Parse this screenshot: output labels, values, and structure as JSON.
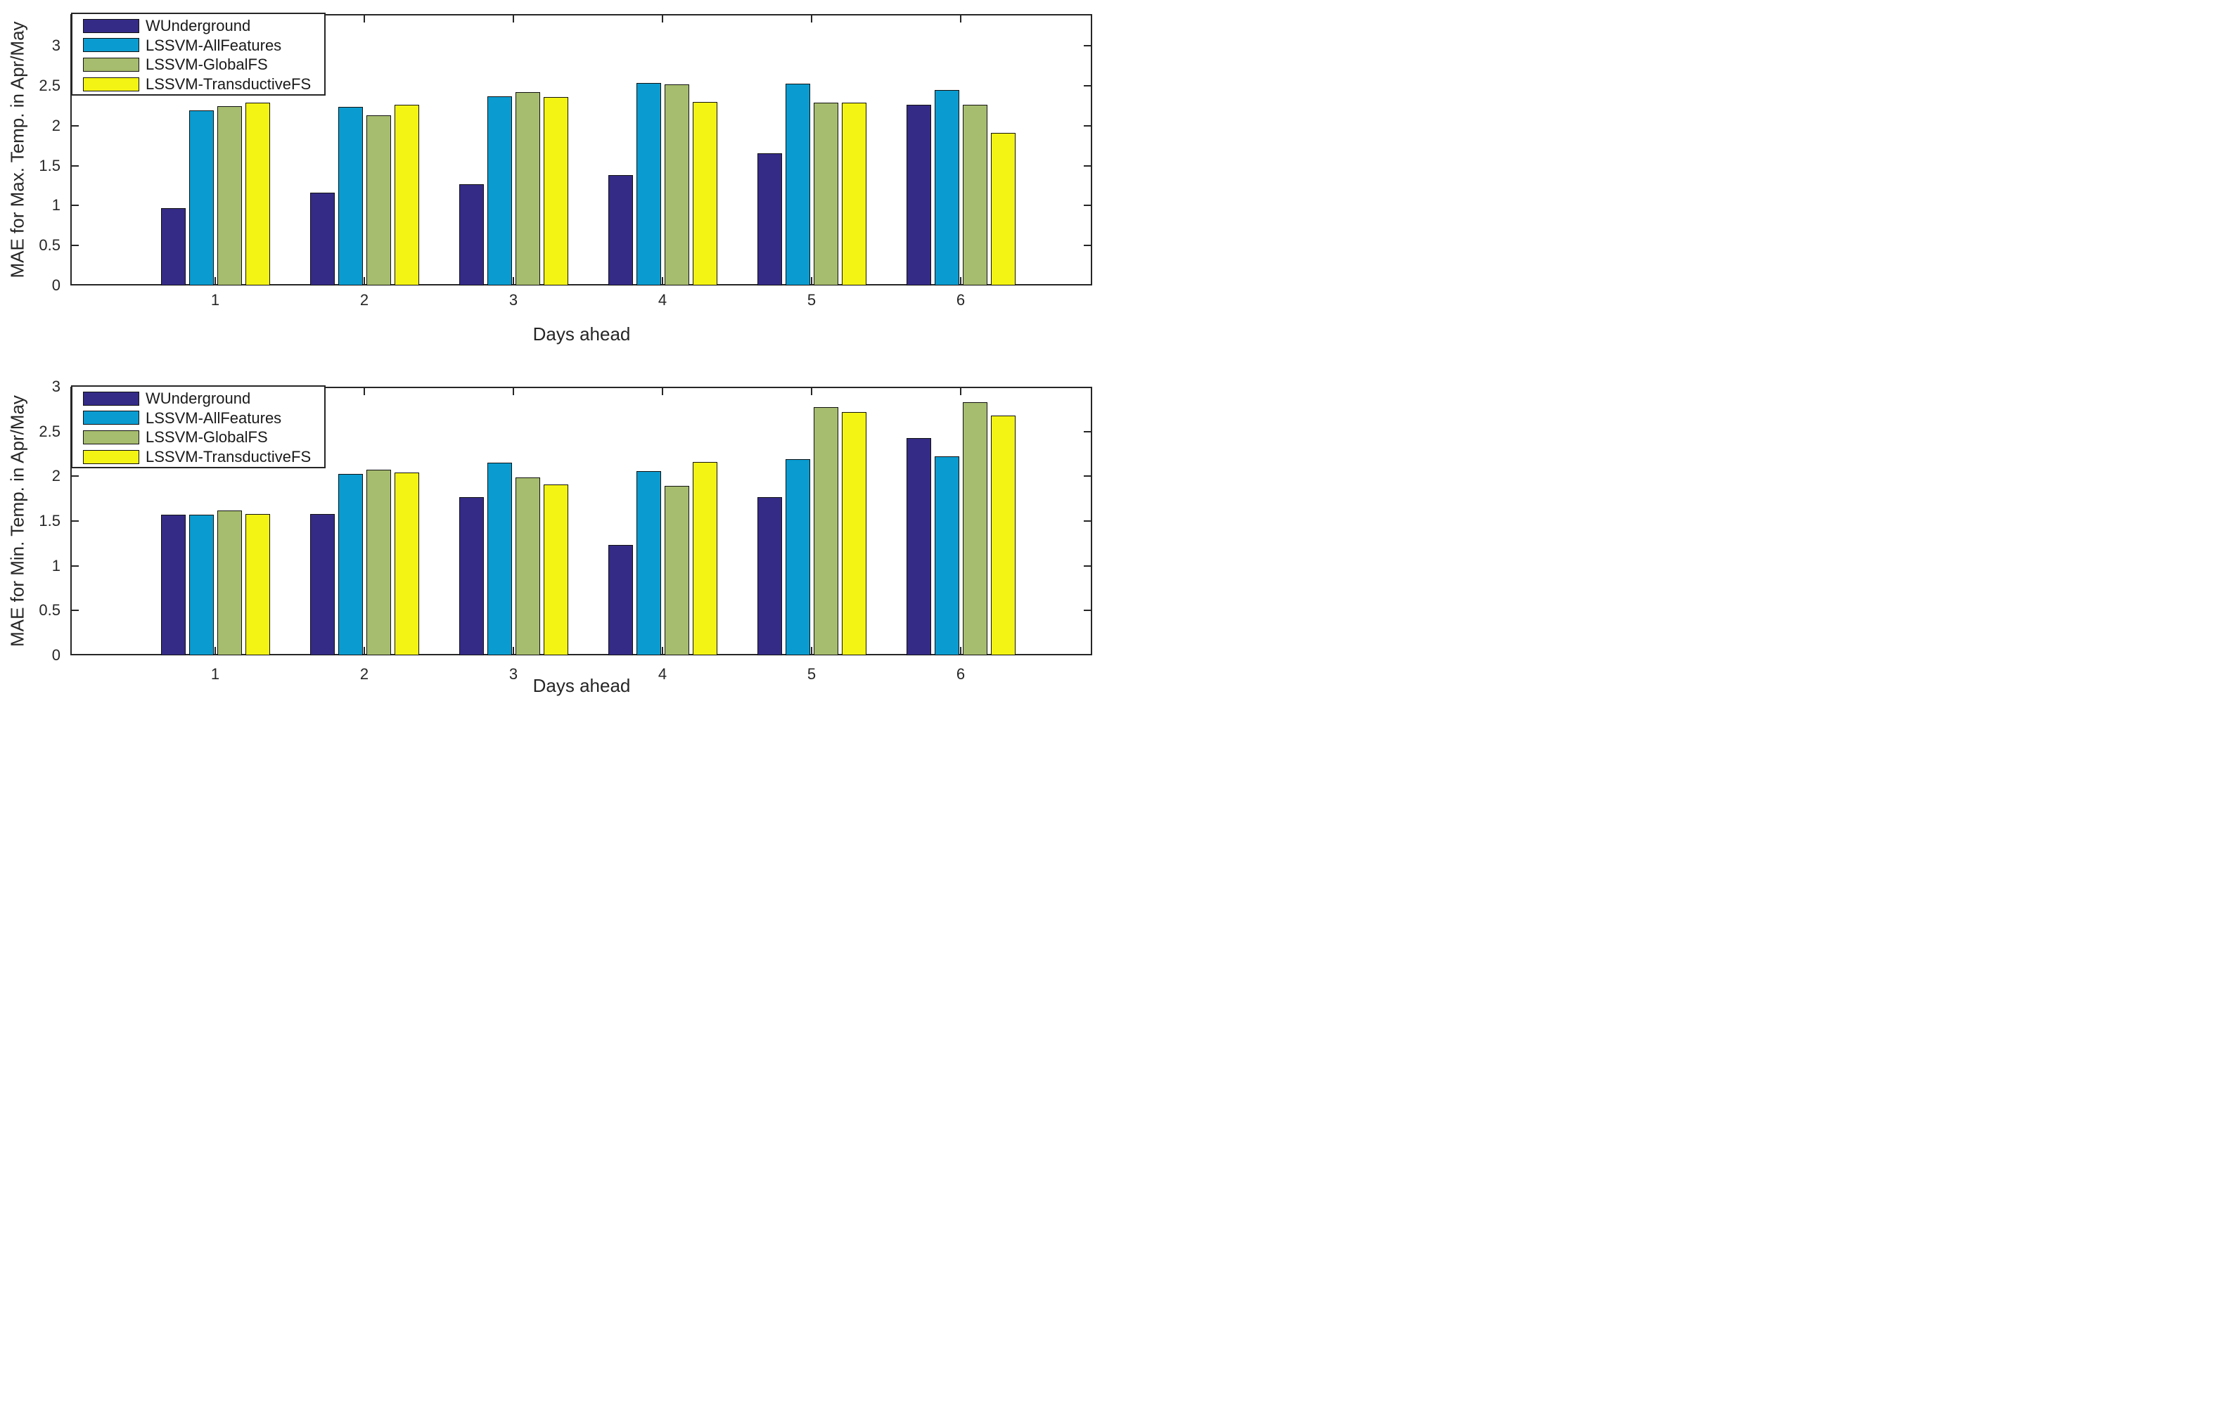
{
  "figure": {
    "background": "#ffffff",
    "axis_color": "#262626"
  },
  "chart_data": [
    {
      "type": "bar",
      "title": "",
      "xlabel": "Days ahead",
      "ylabel": "MAE for Max. Temp. in Apr/May",
      "categories": [
        "1",
        "2",
        "3",
        "4",
        "5",
        "6"
      ],
      "yticks": [
        "0",
        "0.5",
        "1",
        "1.5",
        "2",
        "2.5",
        "3"
      ],
      "ylim": [
        0,
        3.4
      ],
      "grid": false,
      "legend_position": "top-left",
      "legend": [
        "WUnderground",
        "LSSVM-AllFeatures",
        "LSSVM-GlobalFS",
        "LSSVM-TransductiveFS"
      ],
      "series": [
        {
          "name": "WUnderground",
          "color": "#342B87",
          "values": [
            0.97,
            1.16,
            1.27,
            1.38,
            1.66,
            2.26
          ]
        },
        {
          "name": "LSSVM-AllFeatures",
          "color": "#0A9CD0",
          "values": [
            2.19,
            2.24,
            2.37,
            2.54,
            2.53,
            2.45
          ]
        },
        {
          "name": "LSSVM-GlobalFS",
          "color": "#A6BC6E",
          "values": [
            2.25,
            2.13,
            2.42,
            2.52,
            2.29,
            2.26
          ]
        },
        {
          "name": "LSSVM-TransductiveFS",
          "color": "#F3F314",
          "values": [
            2.29,
            2.26,
            2.36,
            2.3,
            2.29,
            1.91
          ]
        }
      ]
    },
    {
      "type": "bar",
      "title": "",
      "xlabel": "Days ahead",
      "ylabel": "MAE for Min. Temp. in Apr/May",
      "categories": [
        "1",
        "2",
        "3",
        "4",
        "5",
        "6"
      ],
      "yticks": [
        "0",
        "0.5",
        "1",
        "1.5",
        "2",
        "2.5",
        "3"
      ],
      "ylim": [
        0,
        3.0
      ],
      "grid": false,
      "legend_position": "top-left",
      "legend": [
        "WUnderground",
        "LSSVM-AllFeatures",
        "LSSVM-GlobalFS",
        "LSSVM-TransductiveFS"
      ],
      "series": [
        {
          "name": "WUnderground",
          "color": "#342B87",
          "values": [
            1.57,
            1.58,
            1.77,
            1.23,
            1.77,
            2.43
          ]
        },
        {
          "name": "LSSVM-AllFeatures",
          "color": "#0A9CD0",
          "values": [
            1.57,
            2.03,
            2.15,
            2.06,
            2.19,
            2.22
          ]
        },
        {
          "name": "LSSVM-GlobalFS",
          "color": "#A6BC6E",
          "values": [
            1.62,
            2.07,
            1.99,
            1.89,
            2.77,
            2.83
          ]
        },
        {
          "name": "LSSVM-TransductiveFS",
          "color": "#F3F314",
          "values": [
            1.58,
            2.04,
            1.91,
            2.16,
            2.72,
            2.68
          ]
        }
      ]
    }
  ]
}
